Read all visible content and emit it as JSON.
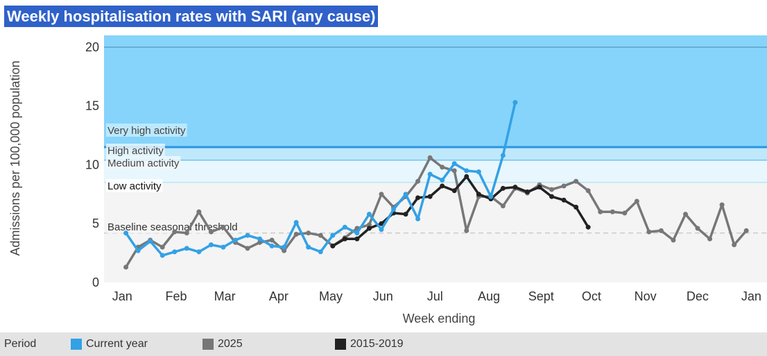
{
  "title": "Weekly hospitalisation rates with SARI (any cause)",
  "legend": {
    "label": "Period",
    "items": [
      {
        "name": "Current year",
        "color": "#33a1e6"
      },
      {
        "name": "2025",
        "color": "#777777"
      },
      {
        "name": "2015-2019",
        "color": "#222222"
      }
    ]
  },
  "chart_data": {
    "type": "line",
    "title": "Weekly hospitalisation rates with SARI (any cause)",
    "xlabel": "Week ending",
    "ylabel": "Admissions per 100,000 population",
    "ylim": [
      0,
      20
    ],
    "yticks": [
      0,
      5,
      10,
      15,
      20
    ],
    "xlim": [
      0,
      52
    ],
    "xtick_labels": [
      "Jan",
      "Feb",
      "Mar",
      "Apr",
      "May",
      "Jun",
      "Jul",
      "Aug",
      "Sept",
      "Oct",
      "Nov",
      "Dec",
      "Jan"
    ],
    "xtick_positions": [
      0,
      4.43,
      8.43,
      12.86,
      17.14,
      21.43,
      25.71,
      30.14,
      34.43,
      38.57,
      43,
      47.29,
      51.71
    ],
    "grid": false,
    "bands": [
      {
        "label": "Very high activity",
        "from": 11.5,
        "to": 21
      },
      {
        "label": "High activity",
        "from": 10.4,
        "to": 11.5
      },
      {
        "label": "Medium activity",
        "from": 8.5,
        "to": 10.4
      },
      {
        "label": "Low activity",
        "from": 0,
        "to": 8.5
      }
    ],
    "threshold": {
      "label": "Baseline seasonal threshold",
      "value": 4.2
    },
    "series": [
      {
        "name": "2025",
        "color": "#777777",
        "x": [
          0.3,
          1.3,
          2.3,
          3.3,
          4.3,
          5.3,
          6.3,
          7.3,
          8.3,
          9.3,
          10.3,
          11.3,
          12.3,
          13.3,
          14.3,
          15.3,
          16.3,
          17.3,
          18.3,
          19.3,
          20.3,
          21.3,
          22.3,
          23.3,
          24.3,
          25.3,
          26.3,
          27.3,
          28.3,
          29.3,
          30.3,
          31.3,
          32.3,
          33.3,
          34.3,
          35.3,
          36.3,
          37.3,
          38.3,
          39.3,
          40.3,
          41.3,
          42.3,
          43.3,
          44.3,
          45.3,
          46.3,
          47.3,
          48.3,
          49.3,
          50.3,
          51.3
        ],
        "values": [
          1.3,
          3.0,
          3.6,
          3.0,
          4.3,
          4.2,
          6.0,
          4.3,
          4.7,
          3.4,
          2.9,
          3.4,
          3.6,
          2.7,
          4.1,
          4.2,
          4.0,
          3.1,
          3.8,
          4.6,
          4.9,
          7.5,
          6.4,
          7.3,
          8.6,
          10.6,
          9.8,
          9.5,
          4.4,
          7.3,
          7.3,
          6.5,
          8.0,
          7.6,
          8.3,
          7.9,
          8.2,
          8.6,
          7.8,
          6.0,
          6.0,
          5.9,
          6.9,
          4.3,
          4.4,
          3.6,
          5.8,
          4.6,
          3.7,
          6.6,
          3.2,
          4.4
        ]
      },
      {
        "name": "2015-2019",
        "color": "#222222",
        "x": [
          17.3,
          18.3,
          19.3,
          20.3,
          21.3,
          22.3,
          23.3,
          24.3,
          25.3,
          26.3,
          27.3,
          28.3,
          29.3,
          30.3,
          31.3,
          32.3,
          33.3,
          34.3,
          35.3,
          36.3,
          37.3,
          38.3
        ],
        "values": [
          3.1,
          3.7,
          3.7,
          4.6,
          5.0,
          5.9,
          5.8,
          7.2,
          7.3,
          8.2,
          7.8,
          9.0,
          7.5,
          7.1,
          8.0,
          8.1,
          7.7,
          8.1,
          7.3,
          7.0,
          6.4,
          4.7
        ]
      },
      {
        "name": "Current year",
        "color": "#33a1e6",
        "x": [
          0.3,
          1.3,
          2.3,
          3.3,
          4.3,
          5.3,
          6.3,
          7.3,
          8.3,
          9.3,
          10.3,
          11.3,
          12.3,
          13.3,
          14.3,
          15.3,
          16.3,
          17.3,
          18.3,
          19.3,
          20.3,
          21.3,
          22.3,
          23.3,
          24.3,
          25.3,
          26.3,
          27.3,
          28.3,
          29.3,
          30.3,
          31.3,
          32.3
        ],
        "values": [
          4.2,
          2.7,
          3.5,
          2.3,
          2.6,
          2.9,
          2.6,
          3.2,
          3.0,
          3.6,
          4.0,
          3.7,
          3.1,
          3.0,
          5.1,
          3.0,
          2.6,
          4.0,
          4.7,
          4.2,
          5.8,
          4.5,
          6.2,
          7.5,
          5.4,
          9.2,
          8.7,
          10.1,
          9.5,
          9.4,
          7.3,
          10.8,
          15.3
        ]
      }
    ]
  }
}
